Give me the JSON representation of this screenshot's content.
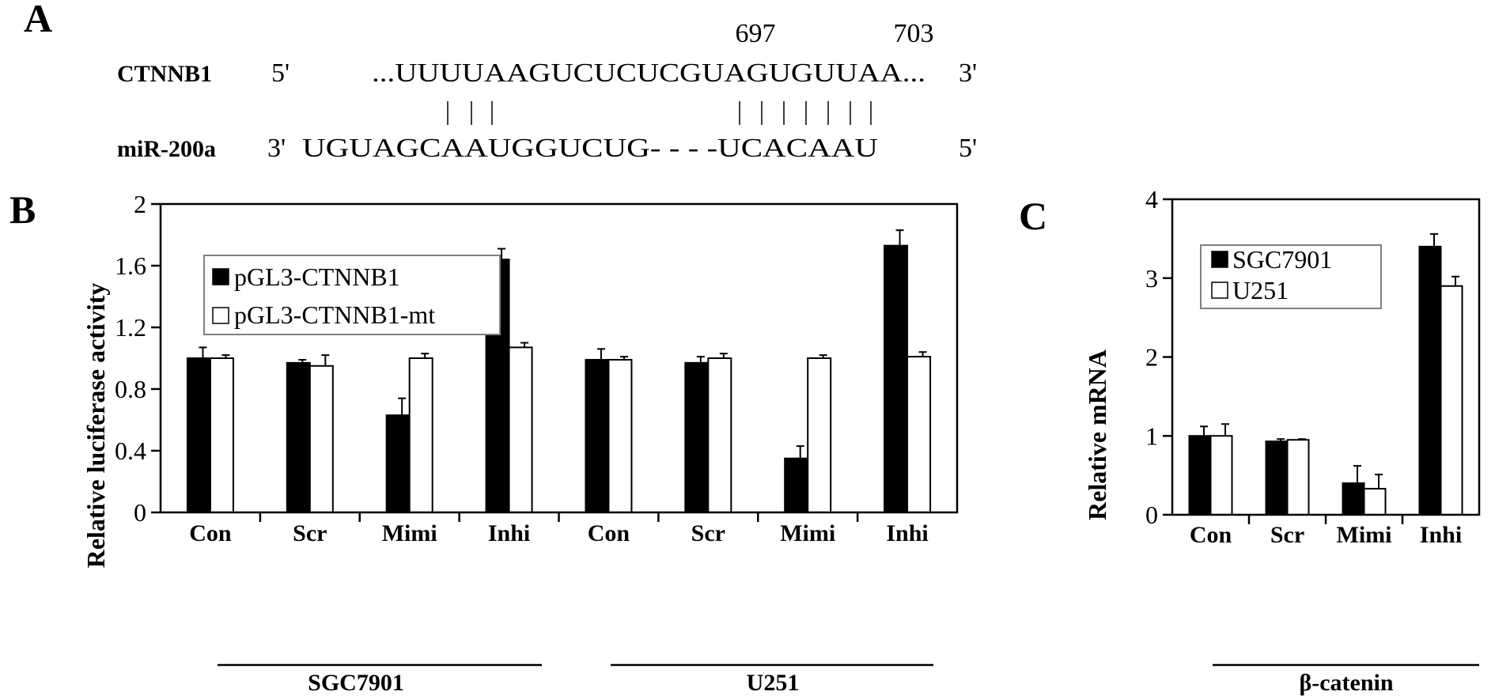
{
  "panel_a": {
    "label": "A",
    "pos_left": "697",
    "pos_right": "703",
    "row1_name": "CTNNB1",
    "row1_end5": "5'",
    "row1_seq": "...UUUUAAGUCUCUCGUAGUGUUAA...",
    "row1_end3": "3'",
    "row2_name": "miR-200a",
    "row2_end3": "3'",
    "row2_seq": "UGUAGCAAUGGUCUG- - - -UCACAAU",
    "row2_end5": "5'"
  },
  "panel_b_label": "B",
  "panel_c_label": "C",
  "colors": {
    "series1": "#000000",
    "series2": "#ffffff",
    "axis": "#000000",
    "legend_border": "#808080"
  },
  "chart_data": [
    {
      "panel": "B",
      "type": "bar",
      "ylabel": "Relative luciferase activity",
      "ylim": [
        0,
        2
      ],
      "yticks": [
        "0",
        "0.4",
        "0.8",
        "1.2",
        "1.6",
        "2"
      ],
      "categories": [
        "Con",
        "Scr",
        "Mimi",
        "Inhi",
        "Con",
        "Scr",
        "Mimi",
        "Inhi"
      ],
      "groups": [
        {
          "label": "SGC7901",
          "categories": [
            "Con",
            "Scr",
            "Mimi",
            "Inhi"
          ]
        },
        {
          "label": "U251",
          "categories": [
            "Con",
            "Scr",
            "Mimi",
            "Inhi"
          ]
        }
      ],
      "series": [
        {
          "name": "pGL3-CTNNB1",
          "values": [
            1.0,
            0.97,
            0.63,
            1.64,
            0.99,
            0.97,
            0.35,
            1.73
          ],
          "errors": [
            0.07,
            0.02,
            0.11,
            0.07,
            0.07,
            0.04,
            0.08,
            0.1
          ]
        },
        {
          "name": "pGL3-CTNNB1-mt",
          "values": [
            1.0,
            0.95,
            1.0,
            1.07,
            0.99,
            1.0,
            1.0,
            1.01
          ],
          "errors": [
            0.02,
            0.07,
            0.03,
            0.03,
            0.02,
            0.03,
            0.02,
            0.03
          ]
        }
      ],
      "legend": "top-left"
    },
    {
      "panel": "C",
      "type": "bar",
      "ylabel": "Relative mRNA",
      "xlabel": "β-catenin",
      "ylim": [
        0,
        4
      ],
      "yticks": [
        "0",
        "1",
        "2",
        "3",
        "4"
      ],
      "categories": [
        "Con",
        "Scr",
        "Mimi",
        "Inhi"
      ],
      "series": [
        {
          "name": "SGC7901",
          "values": [
            1.0,
            0.93,
            0.4,
            3.4
          ],
          "errors": [
            0.12,
            0.03,
            0.22,
            0.16
          ]
        },
        {
          "name": "U251",
          "values": [
            1.0,
            0.95,
            0.33,
            2.9
          ],
          "errors": [
            0.15,
            0.01,
            0.18,
            0.12
          ]
        }
      ],
      "legend": "top-left"
    }
  ]
}
